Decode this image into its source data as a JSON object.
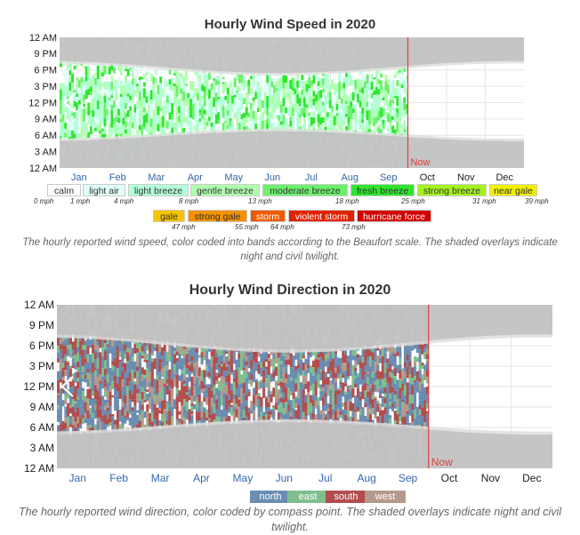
{
  "chart_data": [
    {
      "type": "heatmap",
      "title": "Hourly Wind Speed in 2020",
      "y_tick_labels": [
        "12 AM",
        "9 PM",
        "6 PM",
        "3 PM",
        "12 PM",
        "9 AM",
        "6 AM",
        "3 AM",
        "12 AM"
      ],
      "x_tick_labels": [
        "Jan",
        "Feb",
        "Mar",
        "Apr",
        "May",
        "Jun",
        "Jul",
        "Aug",
        "Sep",
        "Oct",
        "Nov",
        "Dec"
      ],
      "now_label": "Now",
      "now_month_fraction": 9.0,
      "legend": [
        {
          "label": "calm",
          "color": "#ffffff"
        },
        {
          "label": "light air",
          "color": "#e0fff8"
        },
        {
          "label": "light breeze",
          "color": "#b3ffd9"
        },
        {
          "label": "gentle breeze",
          "color": "#b0ffb0"
        },
        {
          "label": "moderate breeze",
          "color": "#6cf06c"
        },
        {
          "label": "fresh breeze",
          "color": "#2ee62e"
        },
        {
          "label": "strong breeze",
          "color": "#a6f220"
        },
        {
          "label": "near gale",
          "color": "#f0f000"
        },
        {
          "label": "gale",
          "color": "#f5c400"
        },
        {
          "label": "strong gale",
          "color": "#f29200"
        },
        {
          "label": "storm",
          "color": "#f05a00"
        },
        {
          "label": "violent storm",
          "color": "#e02200"
        },
        {
          "label": "hurricane force",
          "color": "#d00000"
        }
      ],
      "thresholds": [
        "0 mph",
        "1 mph",
        "4 mph",
        "8 mph",
        "13 mph",
        "18 mph",
        "25 mph",
        "31 mph",
        "39 mph",
        "47 mph",
        "55 mph",
        "64 mph",
        "73 mph"
      ],
      "caption": "The hourly reported wind speed, color coded into bands according to the Beaufort scale. The shaded overlays indicate night and civil twilight."
    },
    {
      "type": "heatmap",
      "title": "Hourly Wind Direction in 2020",
      "y_tick_labels": [
        "12 AM",
        "9 PM",
        "6 PM",
        "3 PM",
        "12 PM",
        "9 AM",
        "6 AM",
        "3 AM",
        "12 AM"
      ],
      "x_tick_labels": [
        "Jan",
        "Feb",
        "Mar",
        "Apr",
        "May",
        "Jun",
        "Jul",
        "Aug",
        "Sep",
        "Oct",
        "Nov",
        "Dec"
      ],
      "now_label": "Now",
      "now_month_fraction": 9.0,
      "legend": [
        {
          "label": "north",
          "color": "#6a8db2"
        },
        {
          "label": "east",
          "color": "#7fbf8f"
        },
        {
          "label": "south",
          "color": "#b34d4d"
        },
        {
          "label": "west",
          "color": "#b39a8c"
        }
      ],
      "caption": "The hourly reported wind direction, color coded by compass point. The shaded overlays indicate night and civil twilight."
    }
  ],
  "colors": {
    "night": "#bdbdbd",
    "twilight": "#dedede",
    "now_line": "#e04040",
    "month_label": "#3366aa",
    "future_month_label": "#222222"
  },
  "icons": {
    "prev_arrow": "chevron-left-icon"
  }
}
